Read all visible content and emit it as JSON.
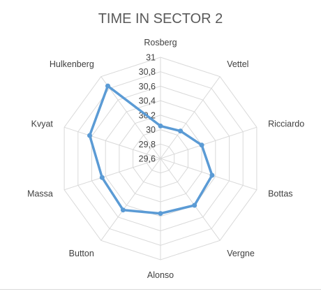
{
  "chart_data": {
    "type": "radar",
    "title": "TIME IN SECTOR 2",
    "categories": [
      "Rosberg",
      "Vettel",
      "Ricciardo",
      "Bottas",
      "Vergne",
      "Alonso",
      "Button",
      "Massa",
      "Kvyat",
      "Hulkenberg"
    ],
    "series": [
      {
        "values": [
          30.05,
          30.07,
          30.2,
          30.35,
          30.4,
          30.36,
          30.48,
          30.45,
          30.63,
          30.84
        ]
      }
    ],
    "rlim": [
      29.6,
      31
    ],
    "ticks": [
      "29,6",
      "29,8",
      "30",
      "30,2",
      "30,4",
      "30,6",
      "30,8",
      "31"
    ],
    "grid": true,
    "legend": "none",
    "colors": {
      "line": "#5B9BD5",
      "grid": "#d9d9d9",
      "text": "#404040",
      "title": "#595959"
    }
  }
}
